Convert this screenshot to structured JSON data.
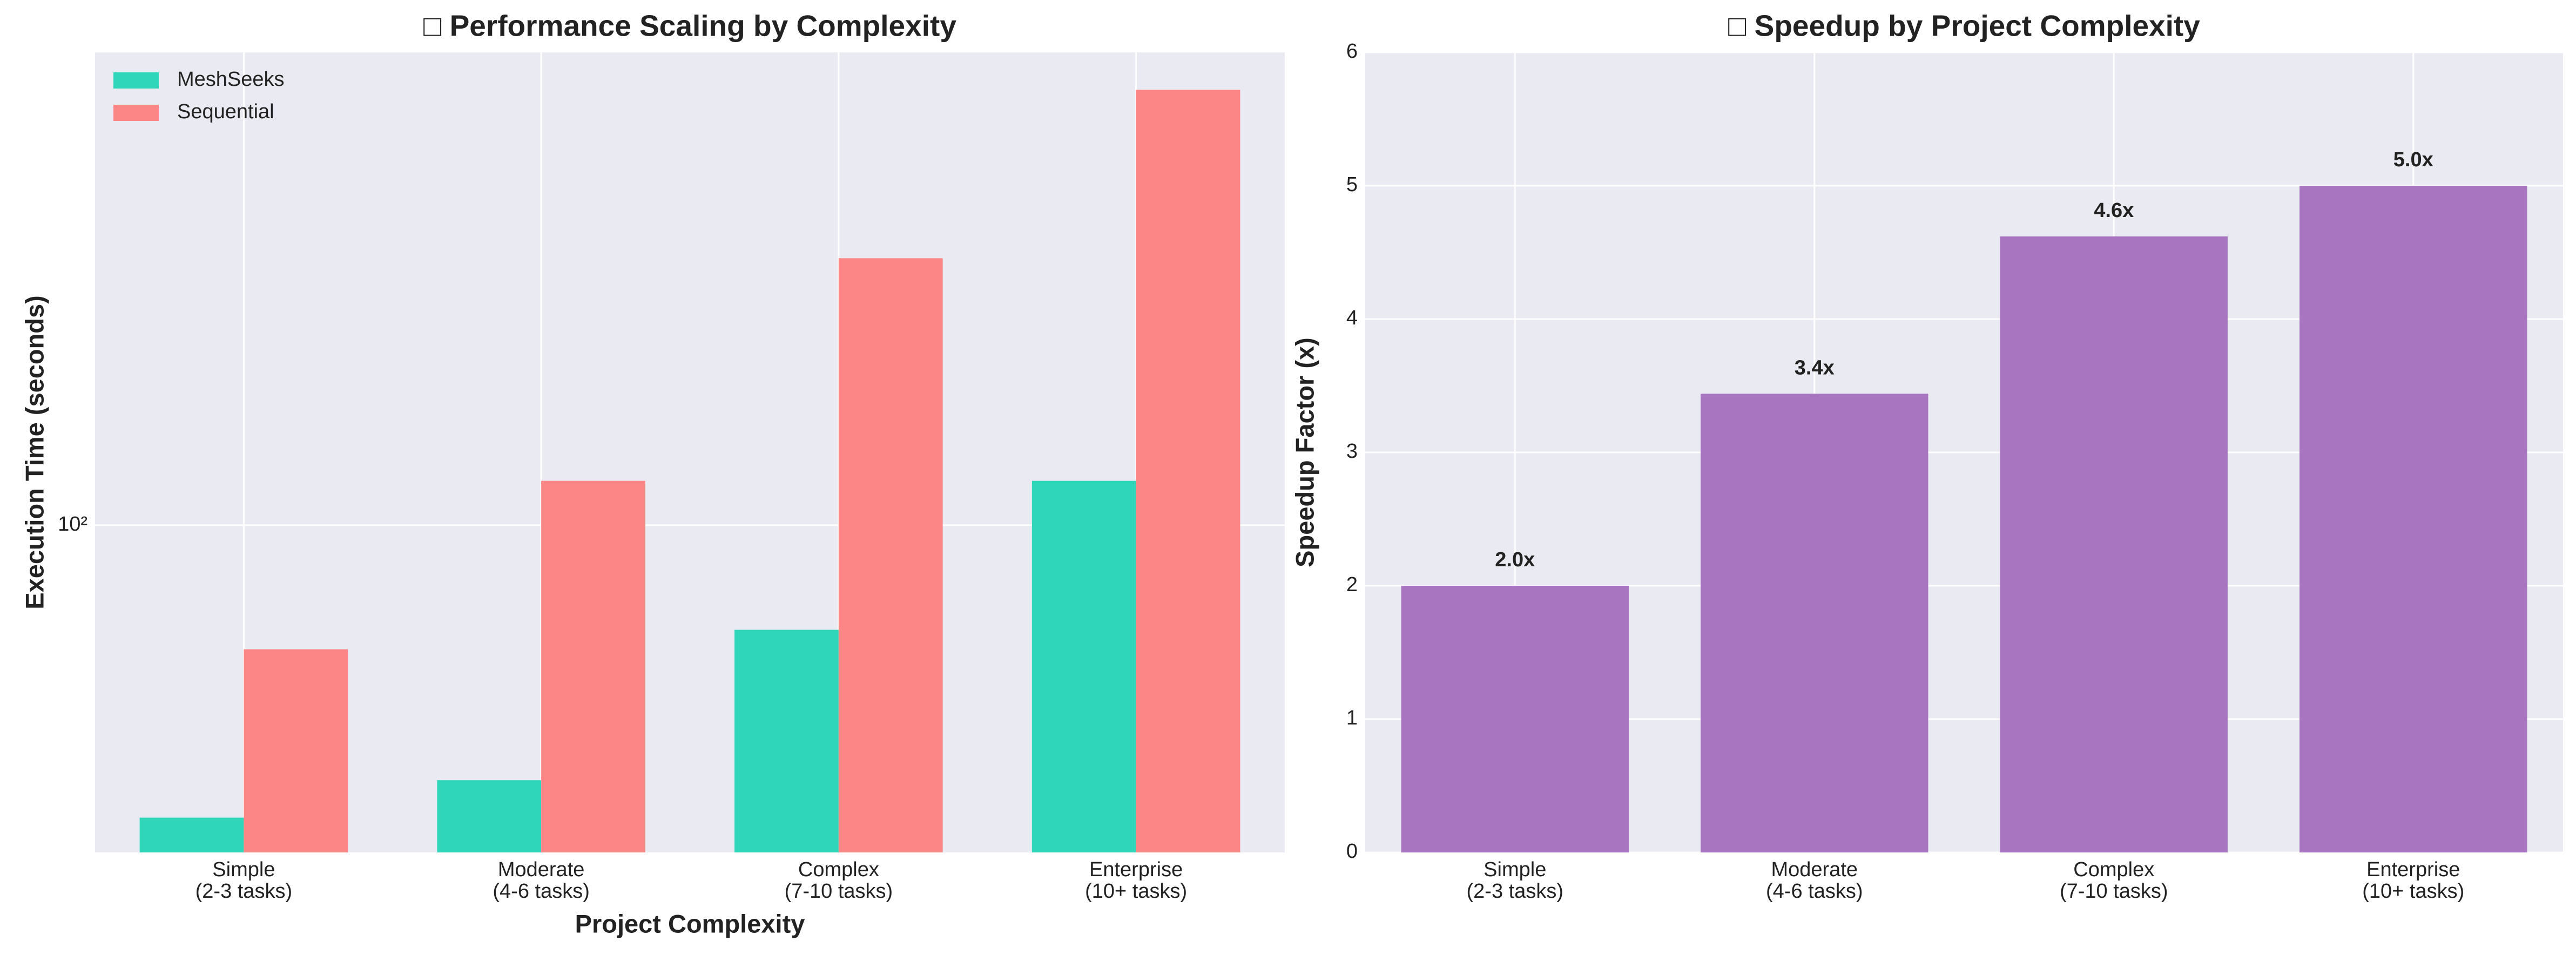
{
  "chart_data": [
    {
      "type": "bar",
      "title": "□ Performance Scaling by Complexity",
      "xlabel": "Project Complexity",
      "ylabel": "Execution Time (seconds)",
      "categories": [
        "Simple\n(2-3 tasks)",
        "Moderate\n(4-6 tasks)",
        "Complex\n(7-10 tasks)",
        "Enterprise\n(10+ tasks)"
      ],
      "series": [
        {
          "name": "MeshSeeks",
          "color": "#30d6ba",
          "values": [
            30,
            35,
            65,
            120
          ]
        },
        {
          "name": "Sequential",
          "color": "#fc8585",
          "values": [
            60,
            120,
            300,
            600
          ]
        }
      ],
      "ylim": [
        26,
        700
      ],
      "yticks": [
        {
          "value": 100,
          "label": "10²"
        }
      ],
      "yscale": "log",
      "grid": true,
      "legend": "upper left"
    },
    {
      "type": "bar",
      "title": "□ Speedup by Project Complexity",
      "ylabel": "Speedup Factor (x)",
      "categories": [
        "Simple\n(2-3 tasks)",
        "Moderate\n(4-6 tasks)",
        "Complex\n(7-10 tasks)",
        "Enterprise\n(10+ tasks)"
      ],
      "values": [
        2.0,
        3.44,
        4.62,
        5.0
      ],
      "value_labels": [
        "2.0x",
        "3.4x",
        "4.6x",
        "5.0x"
      ],
      "color": "#a876c0",
      "ylim": [
        0,
        6
      ],
      "yticks": [
        0,
        1,
        2,
        3,
        4,
        5,
        6
      ],
      "grid": true
    }
  ]
}
